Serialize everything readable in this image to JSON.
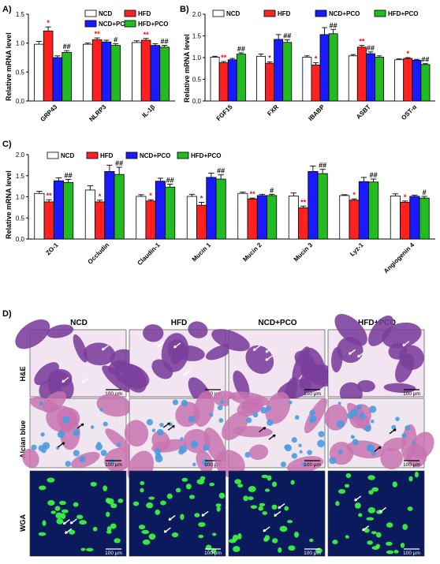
{
  "colors": {
    "NCD": "#ffffff",
    "HFD": "#ff2020",
    "NCD+PCO": "#1a1aff",
    "HFD+PCO": "#22bb22",
    "star": "#ff0000",
    "hash": "#000000",
    "he_tissue": "#7a3d9c",
    "he_lumen": "#f2e4f0",
    "ab_tissue": "#c873b0",
    "ab_mucin": "#4a9be0",
    "wga_bg": "#0b1a5c",
    "wga_signal": "#3dff3d"
  },
  "chart_data": [
    {
      "panel": "A)",
      "type": "bar",
      "ylabel": "Relative mRNA level",
      "ylim": [
        0,
        1.5
      ],
      "yticks": [
        "0.0",
        "0.5",
        "1.0",
        "1.5"
      ],
      "legend": [
        "NCD",
        "HFD",
        "NCD+PCO",
        "HFD+PCO"
      ],
      "legend_position": "top-right",
      "categories": [
        "GRP43",
        "NLRP3",
        "IL-1β"
      ],
      "series": [
        {
          "name": "NCD",
          "values": [
            0.98,
            0.98,
            1.01
          ],
          "errors": [
            0.05,
            0.02,
            0.03
          ]
        },
        {
          "name": "HFD",
          "values": [
            1.21,
            1.06,
            1.05
          ],
          "errors": [
            0.07,
            0.03,
            0.03
          ]
        },
        {
          "name": "NCD+PCO",
          "values": [
            0.75,
            1.02,
            0.96
          ],
          "errors": [
            0.03,
            0.03,
            0.03
          ]
        },
        {
          "name": "HFD+PCO",
          "values": [
            0.84,
            0.96,
            0.93
          ],
          "errors": [
            0.03,
            0.03,
            0.03
          ]
        }
      ],
      "annotations": [
        {
          "category": 0,
          "series": 1,
          "text": "*"
        },
        {
          "category": 0,
          "series": 3,
          "text": "##"
        },
        {
          "category": 1,
          "series": 1,
          "text": "**"
        },
        {
          "category": 1,
          "series": 3,
          "text": "#"
        },
        {
          "category": 2,
          "series": 1,
          "text": "**"
        },
        {
          "category": 2,
          "series": 3,
          "text": "##"
        }
      ]
    },
    {
      "panel": "B)",
      "type": "bar",
      "ylabel": "Relative mRNA level",
      "ylim": [
        0,
        2.0
      ],
      "yticks": [
        "0.0",
        "0.5",
        "1.0",
        "1.5",
        "2.0"
      ],
      "legend": [
        "NCD",
        "HFD",
        "NCD+PCO",
        "HFD+PCO"
      ],
      "legend_position": "top",
      "categories": [
        "FGF15",
        "FXR",
        "IBABP",
        "ASBT",
        "OST-α"
      ],
      "series": [
        {
          "name": "NCD",
          "values": [
            1.01,
            1.03,
            1.01,
            1.04,
            0.95
          ],
          "errors": [
            0.02,
            0.05,
            0.03,
            0.03,
            0.02
          ]
        },
        {
          "name": "HFD",
          "values": [
            0.88,
            0.87,
            0.83,
            1.24,
            0.98
          ],
          "errors": [
            0.03,
            0.03,
            0.05,
            0.04,
            0.02
          ]
        },
        {
          "name": "NCD+PCO",
          "values": [
            0.95,
            1.42,
            1.53,
            1.09,
            0.94
          ],
          "errors": [
            0.03,
            0.11,
            0.16,
            0.04,
            0.02
          ]
        },
        {
          "name": "HFD+PCO",
          "values": [
            1.08,
            1.35,
            1.55,
            1.01,
            0.84
          ],
          "errors": [
            0.03,
            0.06,
            0.1,
            0.03,
            0.02
          ]
        }
      ],
      "annotations": [
        {
          "category": 0,
          "series": 1,
          "text": "**"
        },
        {
          "category": 0,
          "series": 3,
          "text": "##"
        },
        {
          "category": 1,
          "series": 1,
          "text": "*"
        },
        {
          "category": 1,
          "series": 3,
          "text": "##"
        },
        {
          "category": 2,
          "series": 1,
          "text": "*"
        },
        {
          "category": 2,
          "series": 3,
          "text": "##"
        },
        {
          "category": 3,
          "series": 1,
          "text": "**"
        },
        {
          "category": 3,
          "series": 2,
          "text": "##"
        },
        {
          "category": 4,
          "series": 1,
          "text": "*"
        },
        {
          "category": 4,
          "series": 3,
          "text": "##"
        }
      ]
    },
    {
      "panel": "C)",
      "type": "bar",
      "ylabel": "Relative mRNA level",
      "ylim": [
        0,
        2.0
      ],
      "yticks": [
        "0.0",
        "0.5",
        "1.0",
        "1.5",
        "2.0"
      ],
      "legend": [
        "NCD",
        "HFD",
        "NCD+PCO",
        "HFD+PCO"
      ],
      "legend_position": "top",
      "categories": [
        "ZO-1",
        "Occludin",
        "Claudin-1",
        "Mucin 1",
        "Mucin 2",
        "Mucin 3",
        "Lyz-1",
        "Angiogenin 4"
      ],
      "series": [
        {
          "name": "NCD",
          "values": [
            1.08,
            1.16,
            1.01,
            1.01,
            1.08,
            1.02,
            1.03,
            1.02
          ],
          "errors": [
            0.05,
            0.1,
            0.04,
            0.05,
            0.03,
            0.07,
            0.02,
            0.05
          ]
        },
        {
          "name": "HFD",
          "values": [
            0.88,
            0.88,
            0.9,
            0.8,
            0.95,
            0.74,
            0.92,
            0.87
          ],
          "errors": [
            0.05,
            0.04,
            0.03,
            0.07,
            0.02,
            0.04,
            0.03,
            0.03
          ]
        },
        {
          "name": "NCD+PCO",
          "values": [
            1.38,
            1.6,
            1.37,
            1.46,
            1.03,
            1.6,
            1.36,
            1.01
          ],
          "errors": [
            0.07,
            0.15,
            0.07,
            0.1,
            0.03,
            0.13,
            0.1,
            0.03
          ]
        },
        {
          "name": "HFD+PCO",
          "values": [
            1.34,
            1.53,
            1.23,
            1.42,
            1.03,
            1.55,
            1.35,
            0.97
          ],
          "errors": [
            0.07,
            0.17,
            0.07,
            0.1,
            0.03,
            0.1,
            0.07,
            0.04
          ]
        }
      ],
      "annotations": [
        {
          "category": 0,
          "series": 1,
          "text": "**"
        },
        {
          "category": 0,
          "series": 3,
          "text": "##"
        },
        {
          "category": 1,
          "series": 1,
          "text": "*"
        },
        {
          "category": 1,
          "series": 3,
          "text": "##"
        },
        {
          "category": 2,
          "series": 1,
          "text": "*"
        },
        {
          "category": 2,
          "series": 3,
          "text": "##"
        },
        {
          "category": 3,
          "series": 1,
          "text": "*"
        },
        {
          "category": 3,
          "series": 3,
          "text": "##"
        },
        {
          "category": 4,
          "series": 1,
          "text": "**"
        },
        {
          "category": 4,
          "series": 3,
          "text": "#"
        },
        {
          "category": 5,
          "series": 1,
          "text": "**"
        },
        {
          "category": 5,
          "series": 3,
          "text": "##"
        },
        {
          "category": 6,
          "series": 1,
          "text": "*"
        },
        {
          "category": 6,
          "series": 3,
          "text": "##"
        },
        {
          "category": 7,
          "series": 1,
          "text": "*"
        },
        {
          "category": 7,
          "series": 3,
          "text": "#"
        }
      ]
    }
  ],
  "histology": {
    "panel": "D)",
    "columns": [
      "NCD",
      "HFD",
      "NCD+PCO",
      "HFD+PCO"
    ],
    "rows": [
      "H&E",
      "Alcian blue",
      "WGA"
    ],
    "scale_bar": "100 μm"
  }
}
